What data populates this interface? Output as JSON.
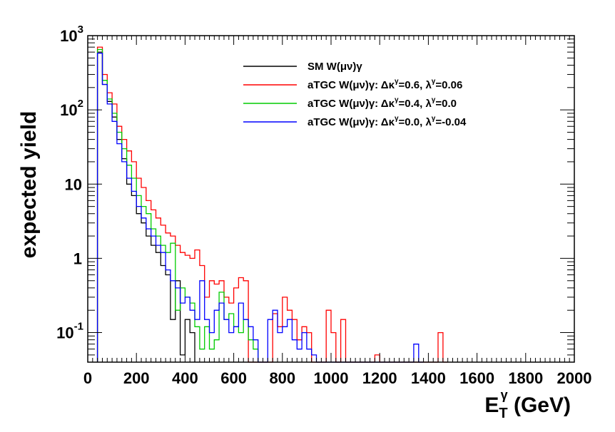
{
  "chart_data": {
    "type": "line",
    "title": "",
    "xlabel": "E_T^γ (GeV)",
    "xlabel_parts": {
      "main": "E",
      "sub": "T",
      "sup": "γ",
      "unit": " (GeV)"
    },
    "ylabel": "expected yield",
    "xlim": [
      0,
      2000
    ],
    "ylim": [
      0.04,
      1000
    ],
    "yscale": "log",
    "grid": false,
    "legend_position": "top-right",
    "x_ticks": [
      {
        "value": 0,
        "label": "0"
      },
      {
        "value": 200,
        "label": "200"
      },
      {
        "value": 400,
        "label": "400"
      },
      {
        "value": 600,
        "label": "600"
      },
      {
        "value": 800,
        "label": "800"
      },
      {
        "value": 1000,
        "label": "1000"
      },
      {
        "value": 1200,
        "label": "1200"
      },
      {
        "value": 1400,
        "label": "1400"
      },
      {
        "value": 1600,
        "label": "1600"
      },
      {
        "value": 1800,
        "label": "1800"
      },
      {
        "value": 2000,
        "label": "2000"
      }
    ],
    "y_ticks": [
      {
        "value": 0.1,
        "base": "10",
        "exp": "-1"
      },
      {
        "value": 1,
        "base": "1",
        "exp": ""
      },
      {
        "value": 10,
        "base": "10",
        "exp": ""
      },
      {
        "value": 100,
        "base": "10",
        "exp": "2"
      },
      {
        "value": 1000,
        "base": "10",
        "exp": "3"
      }
    ],
    "bin_width": 20,
    "series": [
      {
        "name": "SM W(μν)γ",
        "color": "#000000",
        "x": [
          40,
          60,
          80,
          100,
          120,
          140,
          160,
          180,
          200,
          220,
          240,
          260,
          280,
          300,
          320,
          340,
          360,
          380,
          400,
          420
        ],
        "y": [
          600,
          220,
          130,
          80,
          40,
          22,
          10,
          7,
          4,
          3,
          2,
          1.5,
          1.2,
          0.8,
          0.6,
          0.15,
          0.5,
          0.05,
          0.15,
          0.1
        ]
      },
      {
        "name": "aTGC W(μν)γ: Δκ^γ=0.6, λ^γ=0.06",
        "color": "#ff0000",
        "x": [
          40,
          60,
          80,
          100,
          120,
          140,
          160,
          180,
          200,
          220,
          240,
          260,
          280,
          300,
          320,
          340,
          360,
          380,
          400,
          420,
          440,
          460,
          480,
          500,
          520,
          540,
          560,
          580,
          600,
          620,
          640,
          660,
          680,
          700,
          720,
          740,
          760,
          780,
          800,
          820,
          840,
          860,
          880,
          900,
          920,
          940,
          960,
          980,
          1000,
          1020,
          1040,
          1060,
          1080,
          1100,
          1120,
          1140,
          1160,
          1180,
          1200,
          1220,
          1240,
          1260,
          1280,
          1300,
          1320,
          1340,
          1360,
          1380,
          1400,
          1420,
          1440,
          1460
        ],
        "y": [
          700,
          300,
          170,
          120,
          60,
          40,
          28,
          20,
          12,
          9,
          6,
          4.5,
          3.5,
          2.8,
          2.2,
          2,
          1.5,
          1.2,
          1.1,
          1,
          1.3,
          0.8,
          0.3,
          0.5,
          0.45,
          0.5,
          0.3,
          0.25,
          0.4,
          0.55,
          0.5,
          0.04,
          0.04,
          0.04,
          0.04,
          0.04,
          0.18,
          0.12,
          0.3,
          0.2,
          0.15,
          0.08,
          0.12,
          0.1,
          0.04,
          0.04,
          0.04,
          0.2,
          0.1,
          0.04,
          0.15,
          0.04,
          0.04,
          0.04,
          0.04,
          0.04,
          0.04,
          0.05,
          0.04,
          0.04,
          0.04,
          0.04,
          0.04,
          0.04,
          0.04,
          0.04,
          0.04,
          0.04,
          0.04,
          0.04,
          0.1,
          0.04
        ]
      },
      {
        "name": "aTGC W(μν)γ: Δκ^γ=0.4, λ^γ=0.0",
        "color": "#00cc00",
        "x": [
          40,
          60,
          80,
          100,
          120,
          140,
          160,
          180,
          200,
          220,
          240,
          260,
          280,
          300,
          320,
          340,
          360,
          380,
          400,
          420,
          440,
          460,
          480,
          500,
          520,
          540,
          560,
          580,
          600,
          620,
          640,
          660,
          680
        ],
        "y": [
          650,
          250,
          140,
          90,
          50,
          30,
          18,
          12,
          7,
          5,
          4,
          2.5,
          2,
          1.5,
          1.2,
          1.6,
          0.2,
          0.4,
          0.3,
          0.25,
          0.12,
          0.06,
          0.12,
          0.06,
          0.08,
          0.35,
          0.15,
          0.18,
          0.12,
          0.1,
          0.15,
          0.08,
          0.06
        ]
      },
      {
        "name": "aTGC W(μν)γ: Δκ^γ=0.0, λ^γ=-0.04",
        "color": "#0000ff",
        "x": [
          40,
          60,
          80,
          100,
          120,
          140,
          160,
          180,
          200,
          220,
          240,
          260,
          280,
          300,
          320,
          340,
          360,
          380,
          400,
          420,
          440,
          460,
          480,
          500,
          520,
          540,
          560,
          580,
          600,
          620,
          640,
          660,
          680,
          700,
          720,
          740,
          760,
          780,
          800,
          820,
          840,
          860,
          880,
          900,
          920,
          940,
          960,
          980,
          1000,
          1020,
          1040,
          1060,
          1080,
          1100,
          1120,
          1140,
          1160,
          1180,
          1200,
          1220,
          1240,
          1260,
          1280,
          1300,
          1320,
          1340,
          1360
        ],
        "y": [
          580,
          220,
          120,
          70,
          35,
          20,
          12,
          8,
          5,
          3.5,
          2.5,
          2,
          1.5,
          1.2,
          0.7,
          0.5,
          0.4,
          0.25,
          0.3,
          0.2,
          0.15,
          0.5,
          0.15,
          0.1,
          0.2,
          0.25,
          0.15,
          0.1,
          0.12,
          0.25,
          0.15,
          0.12,
          0.08,
          0.04,
          0.04,
          0.15,
          0.2,
          0.1,
          0.12,
          0.15,
          0.08,
          0.06,
          0.1,
          0.06,
          0.05,
          0.04,
          0.04,
          0.04,
          0.04,
          0.04,
          0.04,
          0.04,
          0.04,
          0.04,
          0.04,
          0.04,
          0.04,
          0.04,
          0.04,
          0.04,
          0.04,
          0.04,
          0.04,
          0.04,
          0.04,
          0.07,
          0.04
        ]
      }
    ]
  }
}
